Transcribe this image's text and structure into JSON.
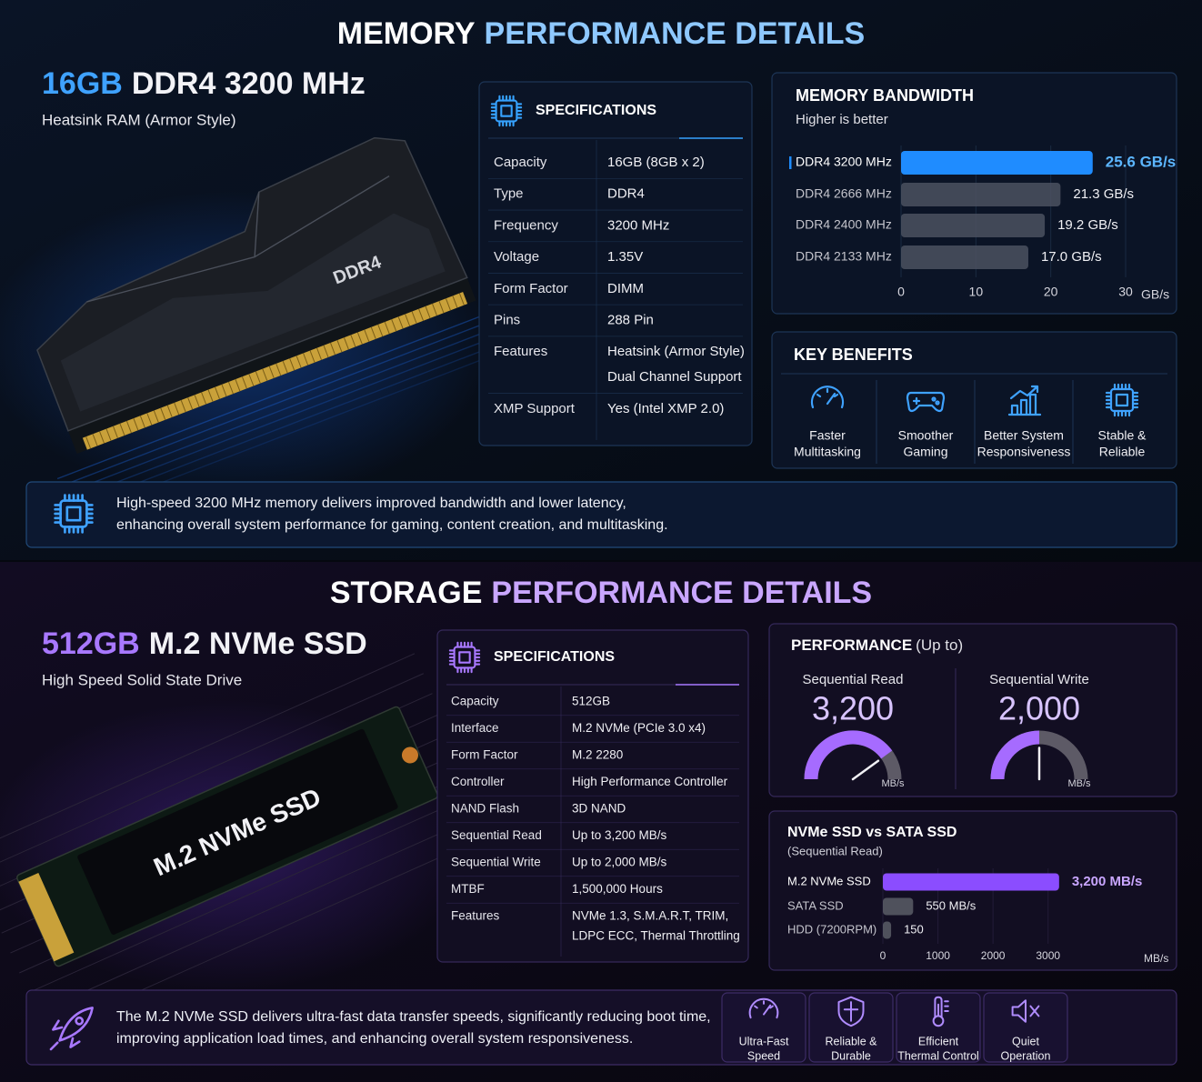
{
  "memory": {
    "title": {
      "lead": "MEMORY",
      "accent": "PERFORMANCE DETAILS"
    },
    "product": {
      "capacity": "16GB",
      "model": "DDR4 3200 MHz",
      "subtitle": "Heatsink RAM (Armor Style)",
      "module_label": "DDR4"
    },
    "specs": {
      "title": "SPECIFICATIONS",
      "rows": [
        {
          "label": "Capacity",
          "lines": [
            "16GB (8GB x 2)"
          ]
        },
        {
          "label": "Type",
          "lines": [
            "DDR4"
          ]
        },
        {
          "label": "Frequency",
          "lines": [
            "3200 MHz"
          ]
        },
        {
          "label": "Voltage",
          "lines": [
            "1.35V"
          ]
        },
        {
          "label": "Form Factor",
          "lines": [
            "DIMM"
          ]
        },
        {
          "label": "Pins",
          "lines": [
            "288 Pin"
          ]
        },
        {
          "label": "Features",
          "lines": [
            "Heatsink (Armor Style)",
            "Dual Channel Support"
          ]
        },
        {
          "label": "XMP Support",
          "lines": [
            "Yes (Intel XMP 2.0)"
          ]
        }
      ]
    },
    "bandwidth": {
      "type": "bar",
      "orientation": "horizontal",
      "title": "MEMORY BANDWIDTH",
      "subtitle": "Higher is better",
      "categories": [
        "DDR4 3200 MHz",
        "DDR4 2666 MHz",
        "DDR4 2400 MHz",
        "DDR4 2133 MHz"
      ],
      "values": [
        25.6,
        21.3,
        19.2,
        17.0
      ],
      "value_labels": [
        "25.6 GB/s",
        "21.3 GB/s",
        "19.2 GB/s",
        "17.0 GB/s"
      ],
      "colors": [
        "#1f8cff",
        "#4b5160",
        "#4b5160",
        "#4b5160"
      ],
      "xlim": [
        0,
        30
      ],
      "xticks": [
        0,
        10,
        20,
        30
      ],
      "x_unit": "GB/s",
      "grid": true
    },
    "benefits": {
      "title": "KEY BENEFITS",
      "items": [
        [
          "Faster",
          "Multitasking"
        ],
        [
          "Smoother",
          "Gaming"
        ],
        [
          "Better System",
          "Responsiveness"
        ],
        [
          "Stable &",
          "Reliable"
        ]
      ]
    },
    "note": [
      "High-speed 3200 MHz memory delivers improved bandwidth and lower latency,",
      "enhancing overall system performance for gaming, content creation, and multitasking."
    ]
  },
  "storage": {
    "title": {
      "lead": "STORAGE",
      "accent": "PERFORMANCE DETAILS"
    },
    "product": {
      "capacity": "512GB",
      "model": "M.2 NVMe SSD",
      "subtitle": "High Speed Solid State Drive",
      "module_label": "M.2 NVMe SSD"
    },
    "specs": {
      "title": "SPECIFICATIONS",
      "rows": [
        {
          "label": "Capacity",
          "lines": [
            "512GB"
          ]
        },
        {
          "label": "Interface",
          "lines": [
            "M.2 NVMe (PCIe 3.0 x4)"
          ]
        },
        {
          "label": "Form Factor",
          "lines": [
            "M.2 2280"
          ]
        },
        {
          "label": "Controller",
          "lines": [
            "High Performance Controller"
          ]
        },
        {
          "label": "NAND Flash",
          "lines": [
            "3D NAND"
          ]
        },
        {
          "label": "Sequential Read",
          "lines": [
            "Up to 3,200 MB/s"
          ]
        },
        {
          "label": "Sequential Write",
          "lines": [
            "Up to 2,000 MB/s"
          ]
        },
        {
          "label": "MTBF",
          "lines": [
            "1,500,000 Hours"
          ]
        },
        {
          "label": "Features",
          "lines": [
            "NVMe 1.3, S.M.A.R.T, TRIM,",
            "LDPC ECC, Thermal Throttling"
          ]
        }
      ]
    },
    "performance": {
      "type": "gauge",
      "title": "PERFORMANCE",
      "title_note": "(Up to)",
      "lim": [
        0,
        4000
      ],
      "color": "#a66bff",
      "gauges": [
        {
          "label": "Sequential Read",
          "value": 3200,
          "value_label": "3,200",
          "unit": "MB/s"
        },
        {
          "label": "Sequential Write",
          "value": 2000,
          "value_label": "2,000",
          "unit": "MB/s"
        }
      ]
    },
    "comparison": {
      "type": "bar",
      "orientation": "horizontal",
      "title": "NVMe SSD vs SATA SSD",
      "subtitle": "(Sequential Read)",
      "categories": [
        "M.2 NVMe SSD",
        "SATA SSD",
        "HDD (7200RPM)"
      ],
      "values": [
        3200,
        550,
        150
      ],
      "value_labels": [
        "3,200 MB/s",
        "550 MB/s",
        "150"
      ],
      "colors": [
        "#8b4dff",
        "#5a5d66",
        "#5a5d66"
      ],
      "xlim": [
        0,
        3500
      ],
      "xticks": [
        0,
        1000,
        2000,
        3000
      ],
      "x_unit": "MB/s",
      "grid": true
    },
    "note": [
      "The M.2 NVMe SSD delivers ultra-fast data transfer speeds, significantly reducing boot time,",
      "improving application load times, and enhancing overall system responsiveness."
    ],
    "features": [
      [
        "Ultra-Fast",
        "Speed"
      ],
      [
        "Reliable &",
        "Durable"
      ],
      [
        "Efficient",
        "Thermal Control"
      ],
      [
        "Quiet",
        "Operation"
      ]
    ]
  }
}
